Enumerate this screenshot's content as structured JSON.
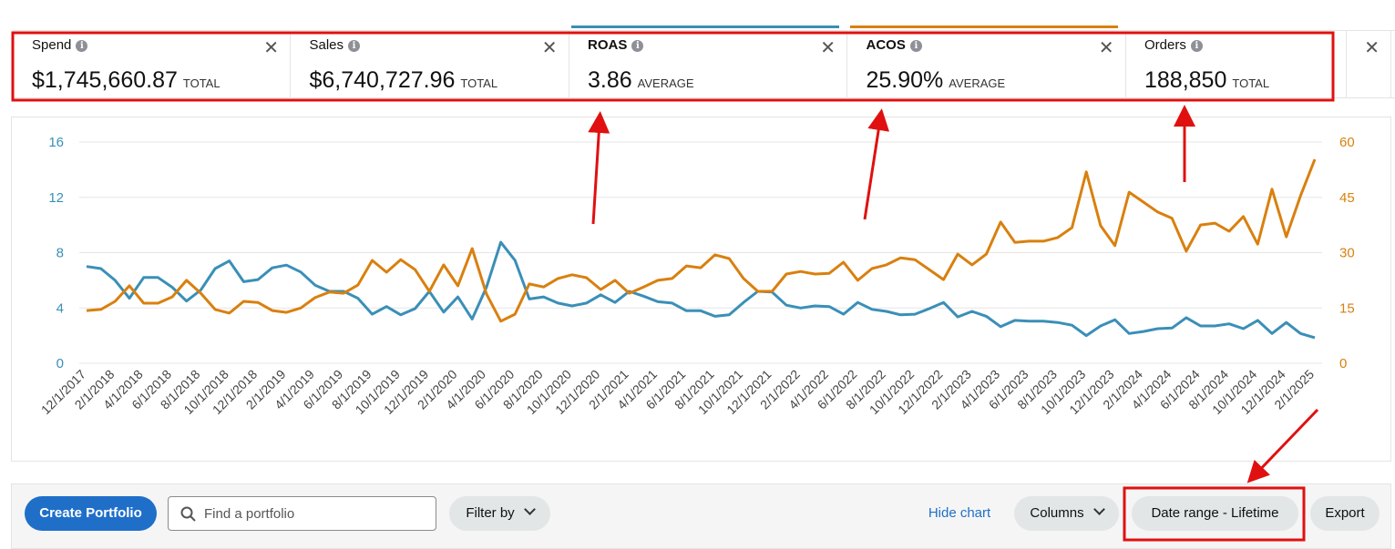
{
  "metrics": [
    {
      "label": "Spend",
      "value": "$1,745,660.87",
      "suffix": "TOTAL"
    },
    {
      "label": "Sales",
      "value": "$6,740,727.96",
      "suffix": "TOTAL"
    },
    {
      "label": "ROAS",
      "value": "3.86",
      "suffix": "AVERAGE",
      "color": "#3a8fb7"
    },
    {
      "label": "ACOS",
      "value": "25.90%",
      "suffix": "AVERAGE",
      "color": "#d9800f"
    },
    {
      "label": "Orders",
      "value": "188,850",
      "suffix": "TOTAL"
    }
  ],
  "chart_data": {
    "type": "line",
    "x": [
      "12/1/2017",
      null,
      "2/1/2018",
      null,
      "4/1/2018",
      null,
      "6/1/2018",
      null,
      "8/1/2018",
      null,
      "10/1/2018",
      null,
      "12/1/2018",
      null,
      "2/1/2019",
      null,
      "4/1/2019",
      null,
      "6/1/2019",
      null,
      "8/1/2019",
      null,
      "10/1/2019",
      null,
      "12/1/2019",
      null,
      "2/1/2020",
      null,
      "4/1/2020",
      null,
      "6/1/2020",
      null,
      "8/1/2020",
      null,
      "10/1/2020",
      null,
      "12/1/2020",
      null,
      "2/1/2021",
      null,
      "4/1/2021",
      null,
      "6/1/2021",
      null,
      "8/1/2021",
      null,
      "10/1/2021",
      null,
      "12/1/2021",
      null,
      "2/1/2022",
      null,
      "4/1/2022",
      null,
      "6/1/2022",
      null,
      "8/1/2022",
      null,
      "10/1/2022",
      null,
      "12/1/2022",
      null,
      "2/1/2023",
      null,
      "4/1/2023",
      null,
      "6/1/2023",
      null,
      "8/1/2023",
      null,
      "10/1/2023",
      null,
      "12/1/2023",
      null,
      "2/1/2024",
      null,
      "4/1/2024",
      null,
      "6/1/2024",
      null,
      "8/1/2024",
      null,
      "10/1/2024",
      null,
      "12/1/2024",
      null,
      "2/1/2025"
    ],
    "series": [
      {
        "color": "#3a8fb7",
        "values": [
          7.0,
          6.85,
          6.0,
          4.7,
          6.2,
          6.2,
          5.5,
          4.5,
          5.3,
          6.85,
          7.4,
          5.9,
          6.05,
          6.9,
          7.1,
          6.6,
          5.65,
          5.2,
          5.2,
          4.7,
          3.55,
          4.1,
          3.5,
          3.95,
          5.2,
          3.7,
          4.8,
          3.2,
          5.5,
          8.75,
          7.45,
          4.65,
          4.8,
          4.35,
          4.15,
          4.35,
          4.95,
          4.4,
          5.2,
          4.85,
          4.45,
          4.35,
          3.8,
          3.8,
          3.4,
          3.5,
          4.4,
          5.2,
          5.15,
          4.2,
          4.0,
          4.15,
          4.1,
          3.55,
          4.4,
          3.9,
          3.75,
          3.5,
          3.55,
          3.95,
          4.4,
          3.35,
          3.75,
          3.4,
          2.65,
          3.1,
          3.05,
          3.05,
          2.95,
          2.75,
          2.0,
          2.7,
          3.15,
          2.15,
          2.3,
          2.5,
          2.55,
          3.3,
          2.7,
          2.7,
          2.85,
          2.5,
          3.1,
          2.15,
          2.95,
          2.15,
          1.85
        ]
      },
      {
        "color": "#d9800f",
        "axis": "y2",
        "values": [
          14.3,
          14.6,
          16.8,
          21,
          16.3,
          16.3,
          18,
          22.5,
          19,
          14.6,
          13.6,
          16.8,
          16.5,
          14.3,
          13.8,
          15,
          17.8,
          19.3,
          19,
          21.2,
          27.9,
          24.7,
          28.1,
          25.4,
          19.5,
          26.7,
          21,
          31.1,
          18.8,
          11.4,
          13.3,
          21.5,
          20.7,
          23,
          24,
          23.2,
          20,
          22.5,
          19,
          20.7,
          22.5,
          23,
          26.4,
          25.9,
          29.4,
          28.4,
          23,
          19.5,
          19.5,
          24.2,
          24.9,
          24.2,
          24.4,
          27.4,
          22.5,
          25.7,
          26.7,
          28.6,
          28.1,
          25.4,
          22.7,
          29.6,
          26.7,
          29.6,
          38.3,
          32.8,
          33.1,
          33.1,
          34.1,
          36.8,
          51.9,
          37.3,
          31.9,
          46.4,
          43.7,
          41,
          39.3,
          30.4,
          37.5,
          38,
          35.8,
          39.8,
          32.3,
          47.2,
          34.3,
          45.4,
          55.3
        ]
      }
    ],
    "ylim": [
      0,
      16
    ],
    "yticks": [
      0,
      4,
      8,
      12,
      16
    ],
    "y2lim": [
      0,
      60
    ],
    "y2ticks": [
      0,
      15,
      30,
      45,
      60
    ],
    "grid": true
  },
  "toolbar": {
    "create": "Create Portfolio",
    "search_placeholder": "Find a portfolio",
    "filter": "Filter by",
    "hide_chart": "Hide chart",
    "columns": "Columns",
    "date_range": "Date range - Lifetime",
    "export": "Export"
  }
}
